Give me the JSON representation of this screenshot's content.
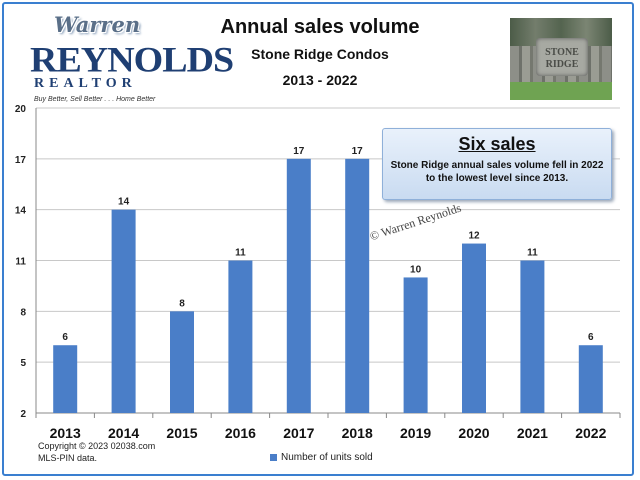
{
  "logo": {
    "name_first": "Warren",
    "name_last": "REYNOLDS",
    "subtitle": "REALTOR",
    "tagline": "Buy Better, Sell Better . . . Home Better"
  },
  "header": {
    "title": "Annual sales volume",
    "subtitle": "Stone Ridge Condos",
    "date_range": "2013 - 2022"
  },
  "photo": {
    "sign_line1": "STONE",
    "sign_line2": "RIDGE"
  },
  "callout": {
    "heading": "Six sales",
    "text": "Stone Ridge annual sales volume fell in 2022 to the lowest level since 2013."
  },
  "watermark": "© Warren Reynolds",
  "footer": {
    "copyright": "Copyright © 2023 02038.com",
    "source": "MLS-PIN data."
  },
  "colors": {
    "bar": "#4a7ec8",
    "frame": "#3a7fd0"
  },
  "chart_data": {
    "type": "bar",
    "categories": [
      "2013",
      "2014",
      "2015",
      "2016",
      "2017",
      "2018",
      "2019",
      "2020",
      "2021",
      "2022"
    ],
    "series": [
      {
        "name": "Number of units sold",
        "values": [
          6,
          14,
          8,
          11,
          17,
          17,
          10,
          12,
          11,
          6
        ]
      }
    ],
    "title": "Annual sales volume",
    "subtitle": "Stone Ridge Condos",
    "xlabel": "",
    "ylabel": "",
    "ylim": [
      2,
      20
    ],
    "yticks": [
      2,
      5,
      8,
      11,
      14,
      17,
      20
    ],
    "data_labels": true,
    "grid": true,
    "legend": "bottom"
  }
}
